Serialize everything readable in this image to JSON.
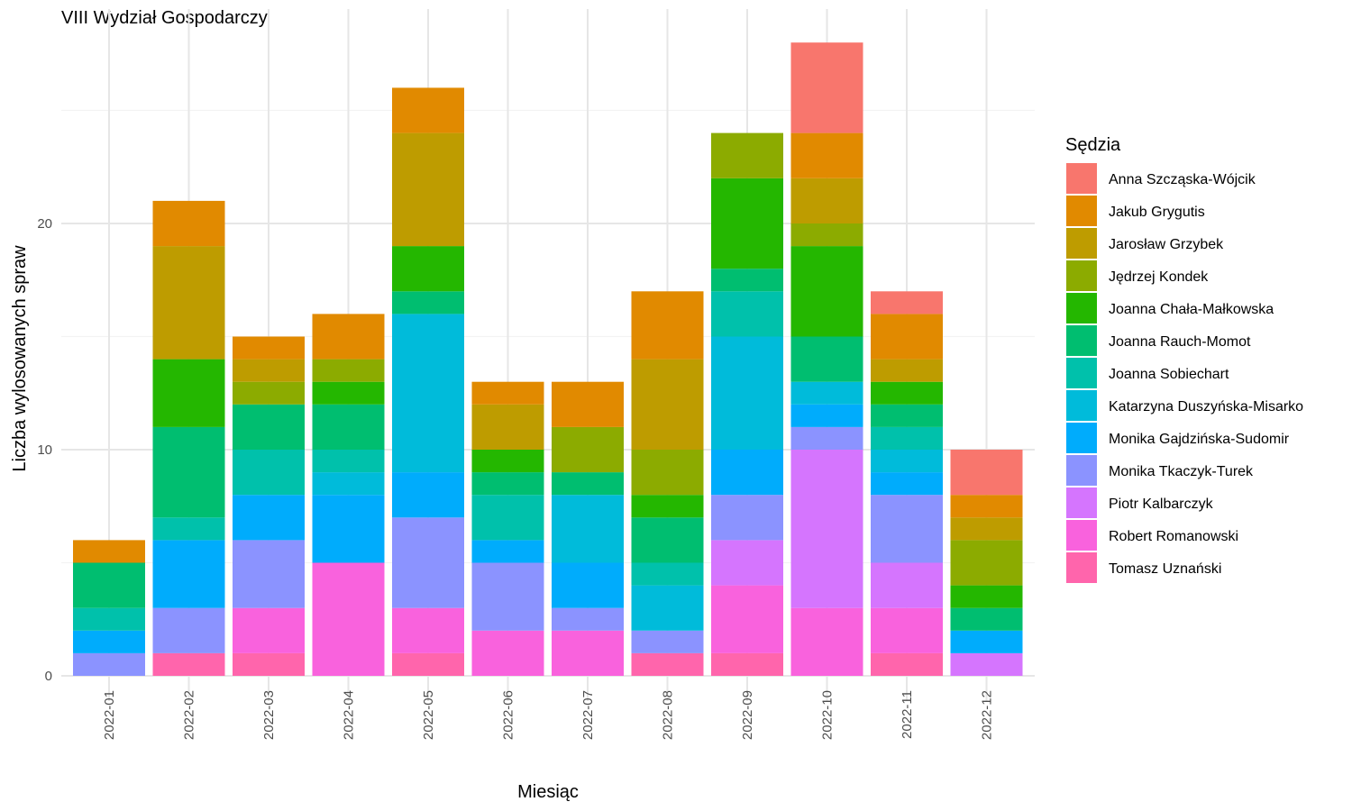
{
  "chart_data": {
    "type": "bar",
    "stacked": true,
    "title": "VIII Wydział Gospodarczy",
    "xlabel": "Miesiąc",
    "ylabel": "Liczba wylosowanych spraw",
    "ylim": [
      0,
      29
    ],
    "yticks": [
      0,
      10,
      20
    ],
    "grid": true,
    "legend_title": "Sędzia",
    "legend_position": "right",
    "categories": [
      "2022-01",
      "2022-02",
      "2022-03",
      "2022-04",
      "2022-05",
      "2022-06",
      "2022-07",
      "2022-08",
      "2022-09",
      "2022-10",
      "2022-11",
      "2022-12"
    ],
    "series": [
      {
        "name": "Anna Szcząska-Wójcik",
        "color": "#F8766D",
        "values": [
          0,
          0,
          0,
          0,
          0,
          0,
          0,
          0,
          0,
          4,
          1,
          2
        ]
      },
      {
        "name": "Jakub Grygutis",
        "color": "#E18A00",
        "values": [
          1,
          2,
          1,
          2,
          2,
          1,
          2,
          3,
          0,
          2,
          2,
          1
        ]
      },
      {
        "name": "Jarosław Grzybek",
        "color": "#BE9C00",
        "values": [
          0,
          5,
          1,
          0,
          5,
          2,
          0,
          4,
          0,
          2,
          1,
          1
        ]
      },
      {
        "name": "Jędrzej Kondek",
        "color": "#8CAB00",
        "values": [
          0,
          0,
          1,
          1,
          0,
          0,
          2,
          2,
          2,
          1,
          0,
          2
        ]
      },
      {
        "name": "Joanna Chała-Małkowska",
        "color": "#24B700",
        "values": [
          0,
          3,
          0,
          1,
          2,
          1,
          0,
          1,
          4,
          4,
          1,
          1
        ]
      },
      {
        "name": "Joanna Rauch-Momot",
        "color": "#00BE70",
        "values": [
          2,
          4,
          2,
          2,
          1,
          1,
          1,
          2,
          1,
          2,
          1,
          1
        ]
      },
      {
        "name": "Joanna Sobiechart",
        "color": "#00C1AB",
        "values": [
          1,
          1,
          2,
          1,
          0,
          2,
          0,
          1,
          2,
          0,
          1,
          0
        ]
      },
      {
        "name": "Katarzyna Duszyńska-Misarko",
        "color": "#00BBDA",
        "values": [
          0,
          0,
          0,
          1,
          7,
          0,
          3,
          2,
          5,
          1,
          1,
          0
        ]
      },
      {
        "name": "Monika Gajdzińska-Sudomir",
        "color": "#00ACFC",
        "values": [
          1,
          3,
          2,
          3,
          2,
          1,
          2,
          0,
          2,
          1,
          1,
          1
        ]
      },
      {
        "name": "Monika Tkaczyk-Turek",
        "color": "#8B93FF",
        "values": [
          1,
          2,
          3,
          0,
          4,
          3,
          1,
          1,
          2,
          1,
          3,
          0
        ]
      },
      {
        "name": "Piotr Kalbarczyk",
        "color": "#D575FE",
        "values": [
          0,
          0,
          0,
          0,
          0,
          0,
          0,
          0,
          2,
          7,
          2,
          1
        ]
      },
      {
        "name": "Robert Romanowski",
        "color": "#F962DD",
        "values": [
          0,
          0,
          2,
          5,
          2,
          2,
          2,
          0,
          3,
          3,
          2,
          0
        ]
      },
      {
        "name": "Tomasz Uznański",
        "color": "#FF65AC",
        "values": [
          0,
          1,
          1,
          0,
          1,
          0,
          0,
          1,
          1,
          0,
          1,
          0
        ]
      }
    ]
  }
}
